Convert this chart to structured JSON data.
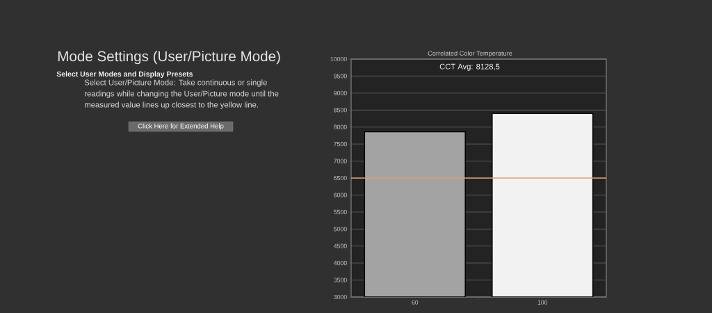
{
  "chart_data": [
    {
      "type": "other",
      "title": "Mode Settings (User/Picture Mode)",
      "subtitle": "Select User Modes and Display Presets",
      "annotations": [
        "Select User/Picture Mode: Take continuous or single readings while changing the User/Picture mode until the measured value lines up closest to the yellow line.",
        "Click Here for Extended Help"
      ]
    },
    {
      "type": "bar",
      "title": "Correlated Color Temperature",
      "categories": [
        "60",
        "100"
      ],
      "values": [
        7860,
        8400
      ],
      "colors": [
        "#a3a3a3",
        "#f2f2f2"
      ],
      "ylim": [
        3000,
        10000
      ],
      "yticks": [
        3000,
        3500,
        4000,
        4500,
        5000,
        5500,
        6000,
        6500,
        7000,
        7500,
        8000,
        8500,
        9000,
        9500,
        10000
      ],
      "grid": "y",
      "ref_lines": [
        {
          "axis": "y",
          "value": 6500,
          "color": "#d4a46c"
        }
      ],
      "annotations": [
        "CCT Avg: 8128,5"
      ]
    }
  ]
}
